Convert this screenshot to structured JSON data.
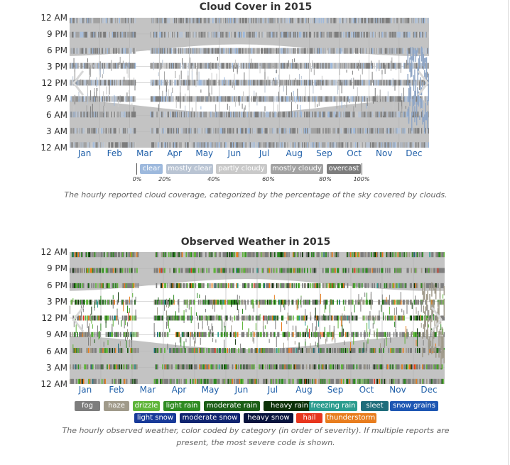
{
  "chart_data": [
    {
      "type": "heatmap",
      "title": "Cloud Cover in 2015",
      "y_labels": [
        "12 AM",
        "9 PM",
        "6 PM",
        "3 PM",
        "12 PM",
        "9 AM",
        "6 AM",
        "3 AM",
        "12 AM"
      ],
      "x_labels": [
        "Jan",
        "Feb",
        "Mar",
        "Apr",
        "May",
        "Jun",
        "Jul",
        "Aug",
        "Sep",
        "Oct",
        "Nov",
        "Dec"
      ],
      "categories": [
        {
          "name": "clear",
          "color": "#9db9dd"
        },
        {
          "name": "mostly clear",
          "color": "#b9c4d3"
        },
        {
          "name": "partly cloudy",
          "color": "#c9c9c9"
        },
        {
          "name": "mostly cloudy",
          "color": "#a2a2a2"
        },
        {
          "name": "overcast",
          "color": "#7d7d7d"
        }
      ],
      "scale_ticks": [
        "0%",
        "20%",
        "40%",
        "60%",
        "80%",
        "100%"
      ],
      "caption": "The hourly reported cloud coverage, categorized by the percentage of the sky covered by clouds."
    },
    {
      "type": "heatmap",
      "title": "Observed Weather in 2015",
      "y_labels": [
        "12 AM",
        "9 PM",
        "6 PM",
        "3 PM",
        "12 PM",
        "9 AM",
        "6 AM",
        "3 AM",
        "12 AM"
      ],
      "x_labels": [
        "Jan",
        "Feb",
        "Mar",
        "Apr",
        "May",
        "Jun",
        "Jul",
        "Aug",
        "Sep",
        "Oct",
        "Nov",
        "Dec"
      ],
      "categories": [
        {
          "name": "fog",
          "color": "#7d7d7d"
        },
        {
          "name": "haze",
          "color": "#a09a8a"
        },
        {
          "name": "drizzle",
          "color": "#5fb53a"
        },
        {
          "name": "light rain",
          "color": "#2e8b22"
        },
        {
          "name": "moderate rain",
          "color": "#1b5e16"
        },
        {
          "name": "heavy rain",
          "color": "#0c3108"
        },
        {
          "name": "freezing rain",
          "color": "#2a9c8e"
        },
        {
          "name": "sleet",
          "color": "#1f6d7b"
        },
        {
          "name": "snow grains",
          "color": "#1e57b3"
        },
        {
          "name": "light snow",
          "color": "#183a99"
        },
        {
          "name": "moderate snow",
          "color": "#0f2470"
        },
        {
          "name": "heavy snow",
          "color": "#08133d"
        },
        {
          "name": "hail",
          "color": "#e8361e"
        },
        {
          "name": "thunderstorm",
          "color": "#e87d1e"
        }
      ],
      "caption_lines": [
        "The hourly observed weather, color coded by category (in order of severity). If multiple reports are",
        "present, the most severe code is shown."
      ]
    }
  ],
  "theme": {
    "plot_background": "#c3c3c3",
    "band_color": "#ffffff",
    "month_label_color": "#1f5fa8"
  }
}
